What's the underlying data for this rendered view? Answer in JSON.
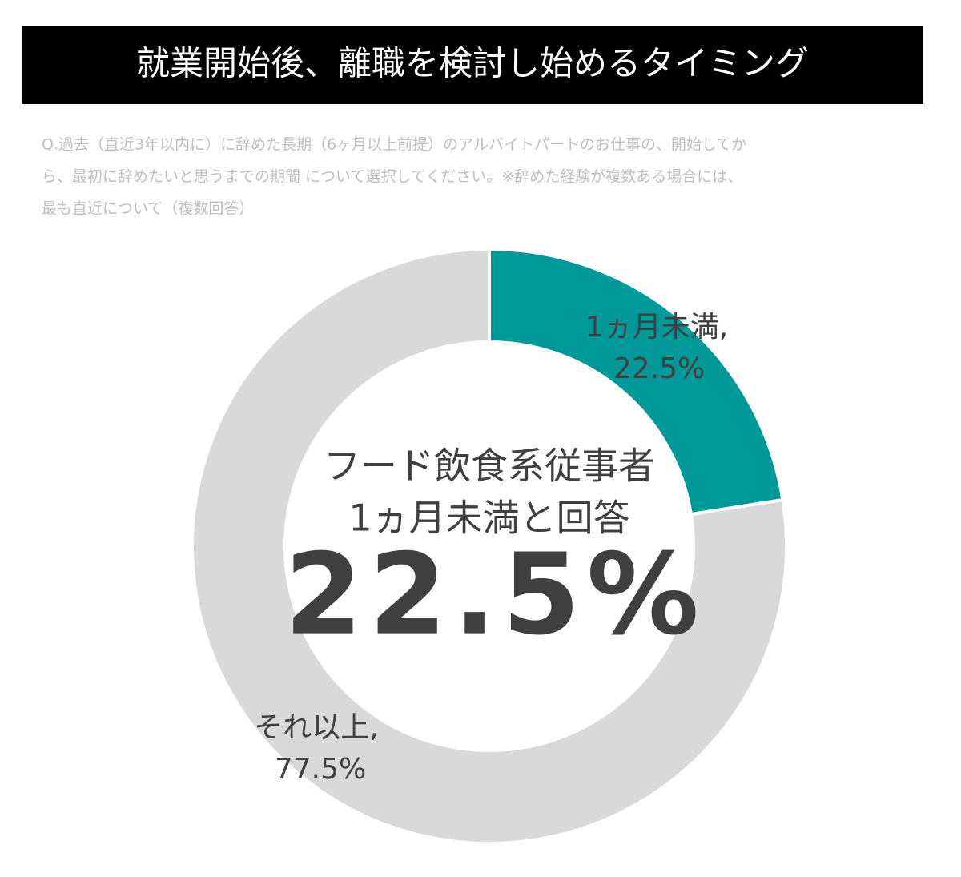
{
  "chart_data": {
    "type": "pie",
    "title": "就業開始後、離職を検討し始めるタイミング",
    "subtitle": [
      "Q.過去（直近3年以内に）に辞めた長期（6ヶ月以上前提）のアルバイトパートのお仕事の、開始してか",
      "ら、最初に辞めたいと思うまでの期間 について選択してください。※辞めた経験が複数ある場合には、",
      "最も直近について（複数回答）"
    ],
    "categories": [
      "1ヵ月未満,",
      "それ以上,"
    ],
    "values": [
      22.5,
      77.5
    ],
    "value_labels": [
      "22.5%",
      "77.5%"
    ],
    "colors": [
      "#009999",
      "#d9d9d9"
    ],
    "center_text": [
      "フード飲食系従事者",
      "1ヵ月未満と回答"
    ],
    "center_value": "22.5%"
  }
}
